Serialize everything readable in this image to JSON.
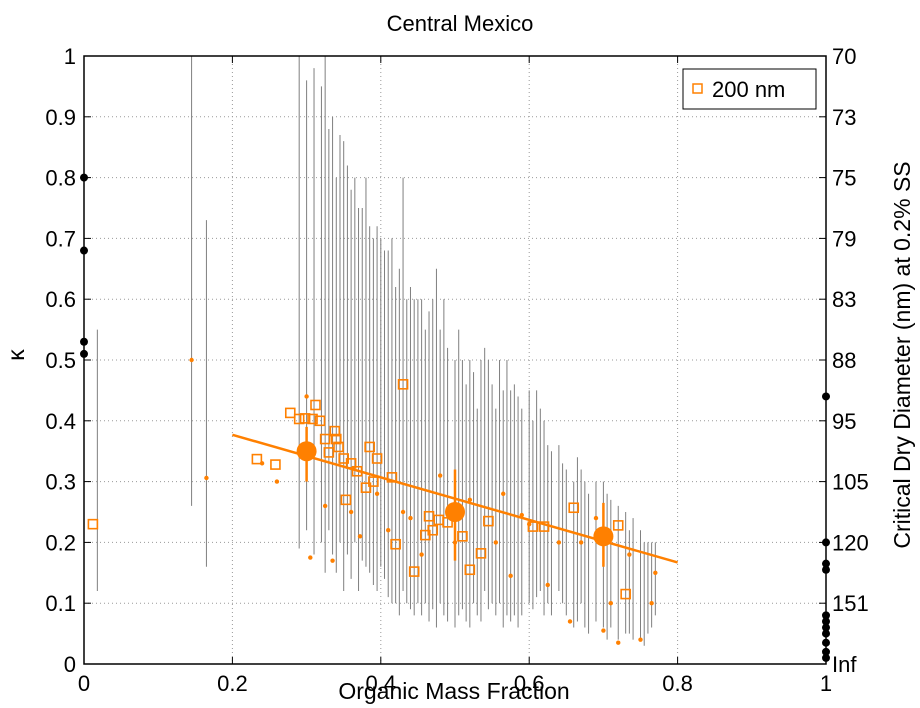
{
  "chart_data": {
    "type": "scatter",
    "title": "Central Mexico",
    "xlabel": "Organic Mass Fraction",
    "ylabel": "κ",
    "y2label": "Critical Dry Diameter (nm) at 0.2% SS",
    "xlim": [
      0,
      1
    ],
    "ylim": [
      0,
      1
    ],
    "xticks": [
      "0",
      "0.2",
      "0.4",
      "0.6",
      "0.8",
      "1"
    ],
    "yticks": [
      "0",
      "0.1",
      "0.2",
      "0.3",
      "0.4",
      "0.5",
      "0.6",
      "0.7",
      "0.8",
      "0.9",
      "1"
    ],
    "y2ticks": [
      "Inf",
      "151",
      "120",
      "105",
      "95",
      "88",
      "83",
      "79",
      "75",
      "73",
      "70"
    ],
    "grid": true,
    "legend": {
      "position": "top-right",
      "entries": [
        "200 nm"
      ]
    },
    "colors": {
      "series": "#ff8000",
      "errorbar": "#7f7f7f",
      "endpoints": "#000000"
    },
    "series": [
      {
        "name": "200 nm",
        "marker": "square",
        "points": [
          [
            0.012,
            0.23
          ],
          [
            0.233,
            0.337
          ],
          [
            0.258,
            0.328
          ],
          [
            0.278,
            0.413
          ],
          [
            0.29,
            0.403
          ],
          [
            0.298,
            0.404
          ],
          [
            0.308,
            0.403
          ],
          [
            0.312,
            0.426
          ],
          [
            0.318,
            0.4
          ],
          [
            0.325,
            0.37
          ],
          [
            0.33,
            0.348
          ],
          [
            0.338,
            0.383
          ],
          [
            0.34,
            0.37
          ],
          [
            0.343,
            0.357
          ],
          [
            0.35,
            0.338
          ],
          [
            0.353,
            0.27
          ],
          [
            0.36,
            0.33
          ],
          [
            0.368,
            0.317
          ],
          [
            0.38,
            0.29
          ],
          [
            0.385,
            0.357
          ],
          [
            0.39,
            0.3
          ],
          [
            0.395,
            0.338
          ],
          [
            0.415,
            0.307
          ],
          [
            0.42,
            0.197
          ],
          [
            0.43,
            0.46
          ],
          [
            0.445,
            0.152
          ],
          [
            0.46,
            0.212
          ],
          [
            0.465,
            0.243
          ],
          [
            0.47,
            0.22
          ],
          [
            0.478,
            0.237
          ],
          [
            0.49,
            0.233
          ],
          [
            0.51,
            0.21
          ],
          [
            0.52,
            0.155
          ],
          [
            0.535,
            0.182
          ],
          [
            0.545,
            0.235
          ],
          [
            0.605,
            0.226
          ],
          [
            0.62,
            0.226
          ],
          [
            0.66,
            0.257
          ],
          [
            0.72,
            0.228
          ],
          [
            0.73,
            0.115
          ]
        ]
      },
      {
        "name": "",
        "marker": "dot",
        "points": [
          [
            0.145,
            0.5
          ],
          [
            0.165,
            0.306
          ],
          [
            0.24,
            0.33
          ],
          [
            0.26,
            0.3
          ],
          [
            0.3,
            0.44
          ],
          [
            0.305,
            0.175
          ],
          [
            0.325,
            0.26
          ],
          [
            0.335,
            0.17
          ],
          [
            0.36,
            0.25
          ],
          [
            0.372,
            0.21
          ],
          [
            0.395,
            0.28
          ],
          [
            0.41,
            0.22
          ],
          [
            0.43,
            0.25
          ],
          [
            0.44,
            0.24
          ],
          [
            0.455,
            0.18
          ],
          [
            0.48,
            0.31
          ],
          [
            0.5,
            0.2
          ],
          [
            0.52,
            0.27
          ],
          [
            0.555,
            0.2
          ],
          [
            0.565,
            0.28
          ],
          [
            0.575,
            0.145
          ],
          [
            0.59,
            0.245
          ],
          [
            0.6,
            0.23
          ],
          [
            0.625,
            0.13
          ],
          [
            0.64,
            0.2
          ],
          [
            0.655,
            0.07
          ],
          [
            0.67,
            0.2
          ],
          [
            0.69,
            0.24
          ],
          [
            0.7,
            0.055
          ],
          [
            0.71,
            0.1
          ],
          [
            0.72,
            0.035
          ],
          [
            0.735,
            0.18
          ],
          [
            0.75,
            0.04
          ],
          [
            0.765,
            0.1
          ],
          [
            0.77,
            0.15
          ]
        ]
      },
      {
        "name": "",
        "marker": "binned-mean",
        "points": [
          {
            "x": 0.3,
            "y": 0.35,
            "yerr": [
              0.3,
              0.39
            ]
          },
          {
            "x": 0.5,
            "y": 0.25,
            "yerr": [
              0.17,
              0.32
            ]
          },
          {
            "x": 0.7,
            "y": 0.21,
            "yerr": [
              0.16,
              0.265
            ]
          }
        ]
      },
      {
        "name": "",
        "marker": "fit-line",
        "points": [
          [
            0.2,
            0.377
          ],
          [
            0.8,
            0.167
          ]
        ]
      },
      {
        "name": "",
        "marker": "endpoint-dot",
        "points": [
          [
            0.0,
            0.8
          ],
          [
            0.0,
            0.68
          ],
          [
            0.0,
            0.53
          ],
          [
            0.0,
            0.51
          ],
          [
            1.0,
            0.44
          ],
          [
            1.0,
            0.2
          ],
          [
            1.0,
            0.165
          ],
          [
            1.0,
            0.155
          ],
          [
            1.0,
            0.08
          ],
          [
            1.0,
            0.07
          ],
          [
            1.0,
            0.06
          ],
          [
            1.0,
            0.05
          ],
          [
            1.0,
            0.035
          ],
          [
            1.0,
            0.02
          ],
          [
            1.0,
            0.01
          ]
        ]
      }
    ],
    "errorbars": [
      [
        0.018,
        0.12,
        0.55
      ],
      [
        0.145,
        0.26,
        1.0
      ],
      [
        0.165,
        0.16,
        0.73
      ],
      [
        0.29,
        0.19,
        1.0
      ],
      [
        0.3,
        0.22,
        0.96
      ],
      [
        0.31,
        0.18,
        0.98
      ],
      [
        0.32,
        0.2,
        0.95
      ],
      [
        0.325,
        0.15,
        1.0
      ],
      [
        0.33,
        0.22,
        0.88
      ],
      [
        0.335,
        0.18,
        0.9
      ],
      [
        0.34,
        0.15,
        0.8
      ],
      [
        0.345,
        0.2,
        0.87
      ],
      [
        0.35,
        0.12,
        0.86
      ],
      [
        0.355,
        0.18,
        0.82
      ],
      [
        0.36,
        0.14,
        0.78
      ],
      [
        0.365,
        0.2,
        0.8
      ],
      [
        0.37,
        0.12,
        0.75
      ],
      [
        0.375,
        0.17,
        0.75
      ],
      [
        0.38,
        0.16,
        0.8
      ],
      [
        0.385,
        0.15,
        0.72
      ],
      [
        0.39,
        0.13,
        0.7
      ],
      [
        0.395,
        0.12,
        0.72
      ],
      [
        0.4,
        0.16,
        0.7
      ],
      [
        0.405,
        0.14,
        0.68
      ],
      [
        0.41,
        0.11,
        0.68
      ],
      [
        0.415,
        0.1,
        0.7
      ],
      [
        0.42,
        0.1,
        0.62
      ],
      [
        0.425,
        0.08,
        0.65
      ],
      [
        0.43,
        0.12,
        0.8
      ],
      [
        0.435,
        0.1,
        0.6
      ],
      [
        0.44,
        0.09,
        0.62
      ],
      [
        0.445,
        0.08,
        0.6
      ],
      [
        0.45,
        0.1,
        0.6
      ],
      [
        0.455,
        0.08,
        0.6
      ],
      [
        0.46,
        0.1,
        0.55
      ],
      [
        0.465,
        0.07,
        0.58
      ],
      [
        0.47,
        0.09,
        0.6
      ],
      [
        0.475,
        0.06,
        0.65
      ],
      [
        0.48,
        0.1,
        0.55
      ],
      [
        0.485,
        0.08,
        0.6
      ],
      [
        0.49,
        0.07,
        0.52
      ],
      [
        0.5,
        0.06,
        0.5
      ],
      [
        0.505,
        0.08,
        0.55
      ],
      [
        0.51,
        0.09,
        0.5
      ],
      [
        0.515,
        0.07,
        0.46
      ],
      [
        0.52,
        0.06,
        0.5
      ],
      [
        0.525,
        0.1,
        0.48
      ],
      [
        0.53,
        0.08,
        0.42
      ],
      [
        0.535,
        0.07,
        0.5
      ],
      [
        0.54,
        0.12,
        0.52
      ],
      [
        0.545,
        0.09,
        0.5
      ],
      [
        0.55,
        0.1,
        0.46
      ],
      [
        0.555,
        0.08,
        0.42
      ],
      [
        0.56,
        0.1,
        0.5
      ],
      [
        0.565,
        0.06,
        0.45
      ],
      [
        0.57,
        0.08,
        0.5
      ],
      [
        0.575,
        0.07,
        0.45
      ],
      [
        0.58,
        0.08,
        0.46
      ],
      [
        0.585,
        0.06,
        0.44
      ],
      [
        0.59,
        0.08,
        0.42
      ],
      [
        0.6,
        0.1,
        0.45
      ],
      [
        0.605,
        0.09,
        0.4
      ],
      [
        0.61,
        0.11,
        0.45
      ],
      [
        0.615,
        0.12,
        0.42
      ],
      [
        0.62,
        0.08,
        0.4
      ],
      [
        0.625,
        0.1,
        0.36
      ],
      [
        0.63,
        0.08,
        0.35
      ],
      [
        0.64,
        0.12,
        0.36
      ],
      [
        0.645,
        0.1,
        0.33
      ],
      [
        0.65,
        0.08,
        0.32
      ],
      [
        0.66,
        0.06,
        0.3
      ],
      [
        0.665,
        0.07,
        0.34
      ],
      [
        0.67,
        0.1,
        0.32
      ],
      [
        0.675,
        0.06,
        0.3
      ],
      [
        0.68,
        0.05,
        0.28
      ],
      [
        0.69,
        0.07,
        0.3
      ],
      [
        0.7,
        0.06,
        0.3
      ],
      [
        0.705,
        0.04,
        0.28
      ],
      [
        0.71,
        0.06,
        0.27
      ],
      [
        0.72,
        0.04,
        0.26
      ],
      [
        0.73,
        0.05,
        0.25
      ],
      [
        0.735,
        0.05,
        0.22
      ],
      [
        0.74,
        0.04,
        0.24
      ],
      [
        0.75,
        0.04,
        0.22
      ],
      [
        0.755,
        0.03,
        0.2
      ],
      [
        0.76,
        0.05,
        0.2
      ],
      [
        0.765,
        0.06,
        0.2
      ],
      [
        0.77,
        0.08,
        0.2
      ]
    ]
  }
}
